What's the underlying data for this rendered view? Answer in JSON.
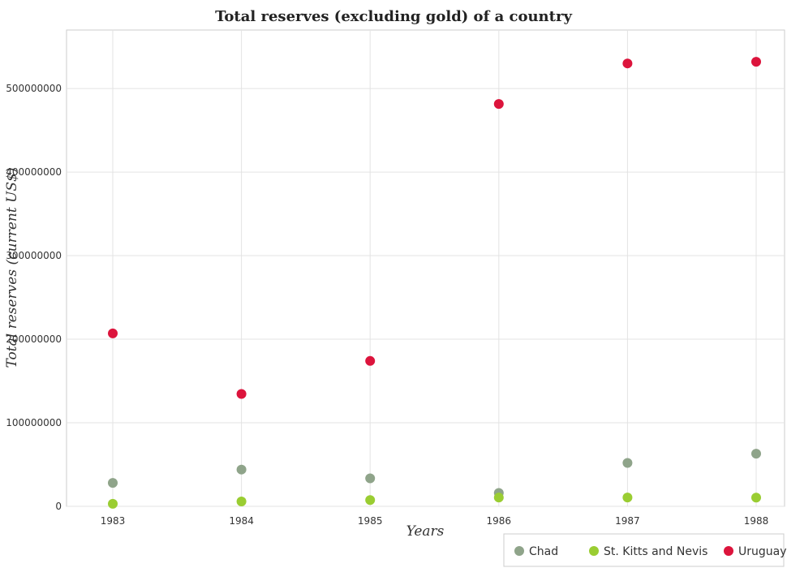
{
  "chart_data": {
    "type": "scatter",
    "title": "Total reserves (excluding gold) of a country",
    "xlabel": "Years",
    "ylabel": "Total reserves (current US$)",
    "categories": [
      "1983",
      "1984",
      "1985",
      "1986",
      "1987",
      "1988"
    ],
    "ylim": [
      0,
      570000000
    ],
    "yticks": [
      0,
      100000000,
      200000000,
      300000000,
      400000000,
      500000000
    ],
    "ytick_labels": [
      "0",
      "100000000",
      "200000000",
      "300000000",
      "400000000",
      "500000000"
    ],
    "grid": true,
    "legend_position": "bottom-right",
    "series": [
      {
        "name": "Chad",
        "color": "#8fa48a",
        "values": [
          28000000,
          44000000,
          33500000,
          16000000,
          52000000,
          63000000
        ]
      },
      {
        "name": "St. Kitts and Nevis",
        "color": "#9acd32",
        "values": [
          3000000,
          5800000,
          7500000,
          10500000,
          10600000,
          10400000
        ]
      },
      {
        "name": "Uruguay",
        "color": "#dc143c",
        "values": [
          207000000,
          134500000,
          174000000,
          481500000,
          530000000,
          532000000
        ]
      }
    ]
  }
}
